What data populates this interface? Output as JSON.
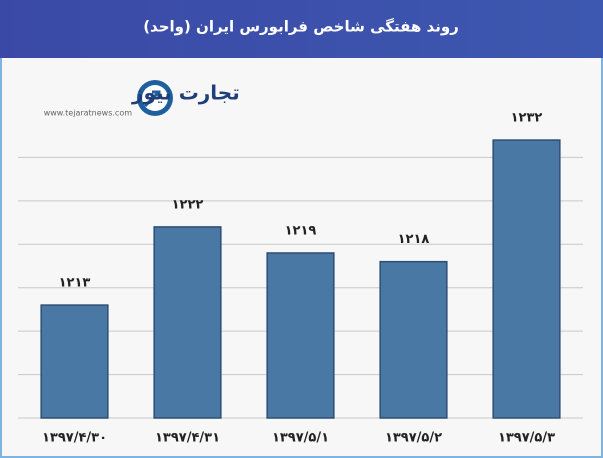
{
  "chart_data": {
    "type": "bar",
    "title": "روند هفتگی شاخص فرابورس ایران (واحد)",
    "logo": {
      "name": "تجارت نیوز",
      "url": "www.tejaratnews.com"
    },
    "categories": [
      "۱۳۹۷/۴/۳۰",
      "۱۳۹۷/۴/۳۱",
      "۱۳۹۷/۵/۱",
      "۱۳۹۷/۵/۲",
      "۱۳۹۷/۵/۳"
    ],
    "values": [
      1213,
      1222,
      1219,
      1218,
      1232
    ],
    "value_labels": [
      "۱۲۱۳",
      "۱۲۲۲",
      "۱۲۱۹",
      "۱۲۱۸",
      "۱۲۳۲"
    ],
    "color": "#4a78a4",
    "ylim": [
      1200,
      1235
    ],
    "yticks": [
      1200,
      1205,
      1210,
      1215,
      1220,
      1225,
      1230
    ],
    "grid": true
  }
}
